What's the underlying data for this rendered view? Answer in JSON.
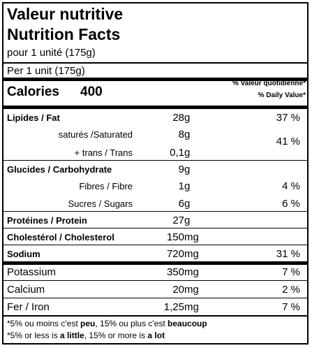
{
  "title_fr": "Valeur nutritive",
  "title_en": "Nutrition Facts",
  "serving_fr": "pour 1 unité (175g)",
  "serving_en": "Per 1 unit (175g)",
  "calories": {
    "label": "Calories",
    "value": "400"
  },
  "dv_header": {
    "fr": "% Valeur quotidienne*",
    "en": "% Daily Value*"
  },
  "nutrients": {
    "fat": {
      "name": "Lipides / Fat",
      "qty": "28",
      "unit": "g",
      "dv": "37 %"
    },
    "saturated": {
      "name": "saturés /Saturated",
      "qty": "8",
      "unit": "g"
    },
    "trans": {
      "name": "+ trans / Trans",
      "qty": "0,1",
      "unit": "g"
    },
    "sat_trans_dv": "41 %",
    "carb": {
      "name": "Glucides / Carbohydrate",
      "qty": "9",
      "unit": "g"
    },
    "fibre": {
      "name": "Fibres / Fibre",
      "qty": "1",
      "unit": "g",
      "dv": "4 %"
    },
    "sugars": {
      "name": "Sucres / Sugars",
      "qty": "6",
      "unit": "g",
      "dv": "6 %"
    },
    "protein": {
      "name": "Protéines / Protein",
      "qty": "27",
      "unit": "g"
    },
    "cholesterol": {
      "name": "Cholestérol / Cholesterol",
      "qty": "150",
      "unit": "mg"
    },
    "sodium": {
      "name": "Sodium",
      "qty": "720",
      "unit": "mg",
      "dv": "31 %"
    },
    "potassium": {
      "name": "Potassium",
      "qty": "350",
      "unit": "mg",
      "dv": "7 %"
    },
    "calcium": {
      "name": "Calcium",
      "qty": "20",
      "unit": "mg",
      "dv": "2 %"
    },
    "iron": {
      "name": "Fer / Iron",
      "qty": "1,25",
      "unit": "mg",
      "dv": "7 %"
    }
  },
  "footnote_fr": {
    "pre": "*5% ou moins c'est ",
    "b1": "peu",
    "mid": ", 15% ou plus c'est ",
    "b2": "beaucoup"
  },
  "footnote_en": {
    "pre": "*5% or less is ",
    "b1": "a little",
    "mid": ", 15% or more is ",
    "b2": "a lot"
  }
}
